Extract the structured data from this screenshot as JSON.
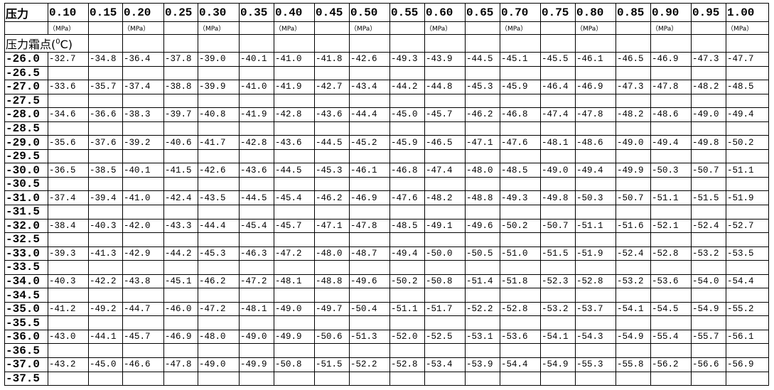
{
  "header": {
    "corner_label": "压力",
    "pressures": [
      "0.10",
      "0.15",
      "0.20",
      "0.25",
      "0.30",
      "0.35",
      "0.40",
      "0.45",
      "0.50",
      "0.55",
      "0.60",
      "0.65",
      "0.70",
      "0.75",
      "0.80",
      "0.85",
      "0.90",
      "0.95",
      "1.00"
    ],
    "units": [
      "（MPa）",
      "",
      "（MPa）",
      "",
      "（MPa）",
      "",
      "（MPa）",
      "",
      "（MPa）",
      "",
      "（MPa）",
      "",
      "（MPa）",
      "",
      "（MPa）",
      "",
      "（MPa）",
      "",
      "（MPa）"
    ]
  },
  "row_label": {
    "text": "压力霜点(",
    "sup": "0",
    "unit": "C)"
  },
  "rows": [
    {
      "dew": "-26.0",
      "values": [
        "-32.7",
        "-34.8",
        "-36.4",
        "-37.8",
        "-39.0",
        "-40.1",
        "-41.0",
        "-41.8",
        "-42.6",
        "-49.3",
        "-43.9",
        "-44.5",
        "-45.1",
        "-45.5",
        "-46.1",
        "-46.5",
        "-46.9",
        "-47.3",
        "-47.7"
      ]
    },
    {
      "dew": "-26.5",
      "values": []
    },
    {
      "dew": "-27.0",
      "values": [
        "-33.6",
        "-35.7",
        "-37.4",
        "-38.8",
        "-39.9",
        "-41.0",
        "-41.9",
        "-42.7",
        "-43.4",
        "-44.2",
        "-44.8",
        "-45.3",
        "-45.9",
        "-46.4",
        "-46.9",
        "-47.3",
        "-47.8",
        "-48.2",
        "-48.5"
      ]
    },
    {
      "dew": "-27.5",
      "values": []
    },
    {
      "dew": "-28.0",
      "values": [
        "-34.6",
        "-36.6",
        "-38.3",
        "-39.7",
        "-40.8",
        "-41.9",
        "-42.8",
        "-43.6",
        "-44.4",
        "-45.0",
        "-45.7",
        "-46.2",
        "-46.8",
        "-47.4",
        "-47.8",
        "-48.2",
        "-48.6",
        "-49.0",
        "-49.4"
      ]
    },
    {
      "dew": "-28.5",
      "values": []
    },
    {
      "dew": "-29.0",
      "values": [
        "-35.6",
        "-37.6",
        "-39.2",
        "-40.6",
        "-41.7",
        "-42.8",
        "-43.6",
        "-44.5",
        "-45.2",
        "-45.9",
        "-46.5",
        "-47.1",
        "-47.6",
        "-48.1",
        "-48.6",
        "-49.0",
        "-49.4",
        "-49.8",
        "-50.2"
      ]
    },
    {
      "dew": "-29.5",
      "values": []
    },
    {
      "dew": "-30.0",
      "values": [
        "-36.5",
        "-38.5",
        "-40.1",
        "-41.5",
        "-42.6",
        "-43.6",
        "-44.5",
        "-45.3",
        "-46.1",
        "-46.8",
        "-47.4",
        "-48.0",
        "-48.5",
        "-49.0",
        "-49.4",
        "-49.9",
        "-50.3",
        "-50.7",
        "-51.1"
      ]
    },
    {
      "dew": "-30.5",
      "values": []
    },
    {
      "dew": "-31.0",
      "values": [
        "-37.4",
        "-39.4",
        "-41.0",
        "-42.4",
        "-43.5",
        "-44.5",
        "-45.4",
        "-46.2",
        "-46.9",
        "-47.6",
        "-48.2",
        "-48.8",
        "-49.3",
        "-49.8",
        "-50.3",
        "-50.7",
        "-51.1",
        "-51.5",
        "-51.9"
      ]
    },
    {
      "dew": "-31.5",
      "values": []
    },
    {
      "dew": "-32.0",
      "values": [
        "-38.4",
        "-40.3",
        "-42.0",
        "-43.3",
        "-44.4",
        "-45.4",
        "-45.7",
        "-47.1",
        "-47.8",
        "-48.5",
        "-49.1",
        "-49.6",
        "-50.2",
        "-50.7",
        "-51.1",
        "-51.6",
        "-52.1",
        "-52.4",
        "-52.7"
      ]
    },
    {
      "dew": "-32.5",
      "values": []
    },
    {
      "dew": "-33.0",
      "values": [
        "-39.3",
        "-41.3",
        "-42.9",
        "-44.2",
        "-45.3",
        "-46.3",
        "-47.2",
        "-48.0",
        "-48.7",
        "-49.4",
        "-50.0",
        "-50.5",
        "-51.0",
        "-51.5",
        "-51.9",
        "-52.4",
        "-52.8",
        "-53.2",
        "-53.5"
      ]
    },
    {
      "dew": "-33.5",
      "values": []
    },
    {
      "dew": "-34.0",
      "values": [
        "-40.3",
        "-42.2",
        "-43.8",
        "-45.1",
        "-46.2",
        "-47.2",
        "-48.1",
        "-48.8",
        "-49.6",
        "-50.2",
        "-50.8",
        "-51.4",
        "-51.8",
        "-52.3",
        "-52.8",
        "-53.2",
        "-53.6",
        "-54.0",
        "-54.4"
      ]
    },
    {
      "dew": "-34.5",
      "values": []
    },
    {
      "dew": "-35.0",
      "values": [
        "-41.2",
        "-49.2",
        "-44.7",
        "-46.0",
        "-47.2",
        "-48.1",
        "-49.0",
        "-49.7",
        "-50.4",
        "-51.1",
        "-51.7",
        "-52.2",
        "-52.8",
        "-53.2",
        "-53.7",
        "-54.1",
        "-54.5",
        "-54.9",
        "-55.2"
      ]
    },
    {
      "dew": "-35.5",
      "values": []
    },
    {
      "dew": "-36.0",
      "values": [
        "-43.0",
        "-44.1",
        "-45.7",
        "-46.9",
        "-48.0",
        "-49.0",
        "-49.9",
        "-50.6",
        "-51.3",
        "-52.0",
        "-52.5",
        "-53.1",
        "-53.6",
        "-54.1",
        "-54.3",
        "-54.9",
        "-55.4",
        "-55.7",
        "-56.1"
      ]
    },
    {
      "dew": "-36.5",
      "values": []
    },
    {
      "dew": "-37.0",
      "values": [
        "-43.2",
        "-45.0",
        "-46.6",
        "-47.8",
        "-49.0",
        "-49.9",
        "-50.8",
        "-51.5",
        "-52.2",
        "-52.8",
        "-53.4",
        "-53.9",
        "-54.4",
        "-54.9",
        "-55.3",
        "-55.8",
        "-56.2",
        "-56.6",
        "-56.9"
      ]
    },
    {
      "dew": "-37.5",
      "values": []
    }
  ]
}
